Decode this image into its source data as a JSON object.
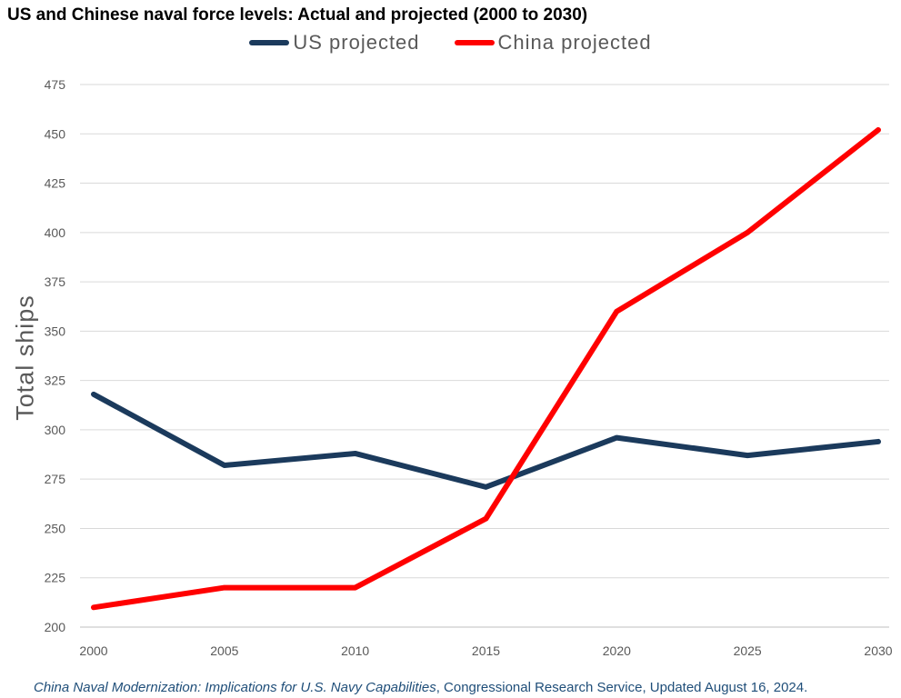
{
  "chart_data": {
    "type": "line",
    "title": "US and Chinese naval force levels: Actual and projected (2000 to 2030)",
    "xlabel": "",
    "ylabel": "Total ships",
    "x": [
      2000,
      2005,
      2010,
      2015,
      2020,
      2025,
      2030
    ],
    "yticks": [
      200,
      225,
      250,
      275,
      300,
      325,
      350,
      375,
      400,
      425,
      450,
      475
    ],
    "ylim": [
      200,
      475
    ],
    "grid": true,
    "legend": "top",
    "series": [
      {
        "name": "US projected",
        "color": "#1b3a5c",
        "values": [
          318,
          282,
          288,
          271,
          296,
          287,
          294
        ]
      },
      {
        "name": "China projected",
        "color": "#ff0000",
        "values": [
          210,
          220,
          220,
          255,
          360,
          400,
          452
        ]
      }
    ]
  },
  "source": {
    "italic": "China Naval Modernization: Implications for U.S. Navy Capabilities",
    "rest": ", Congressional Research Service, Updated August 16, 2024."
  }
}
